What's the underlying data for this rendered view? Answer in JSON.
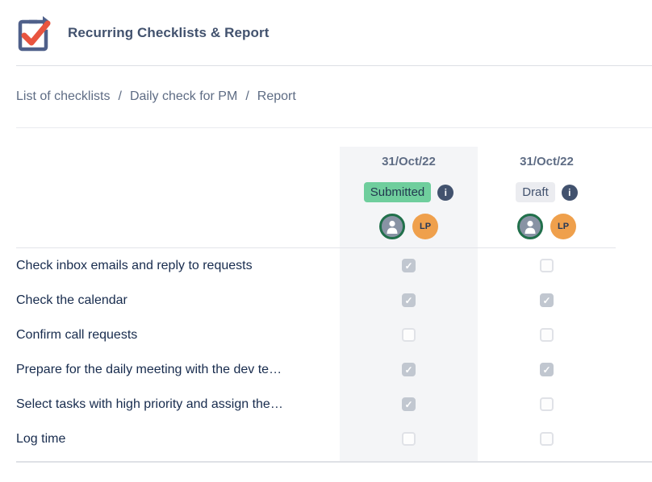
{
  "app": {
    "title": "Recurring Checklists & Report",
    "icon": "recurring-checklist-icon"
  },
  "breadcrumb": {
    "separator": "/",
    "items": [
      {
        "label": "List of checklists",
        "current": false
      },
      {
        "label": "Daily check for PM",
        "current": false
      },
      {
        "label": "Report",
        "current": true
      }
    ]
  },
  "report": {
    "columns": [
      {
        "date": "31/Oct/22",
        "status": "Submitted",
        "status_style": "submitted",
        "has_info_icon": true,
        "highlighted": true,
        "avatars": [
          {
            "kind": "person"
          },
          {
            "kind": "initials",
            "initials": "LP"
          }
        ]
      },
      {
        "date": "31/Oct/22",
        "status": "Draft",
        "status_style": "draft",
        "has_info_icon": true,
        "highlighted": false,
        "avatars": [
          {
            "kind": "person"
          },
          {
            "kind": "initials",
            "initials": "LP"
          }
        ]
      }
    ],
    "rows": [
      {
        "label": "Check inbox emails and reply to requests",
        "checks": [
          true,
          false
        ]
      },
      {
        "label": "Check the calendar",
        "checks": [
          true,
          true
        ]
      },
      {
        "label": "Confirm call requests",
        "checks": [
          false,
          false
        ]
      },
      {
        "label": "Prepare for the daily meeting with the dev te…",
        "checks": [
          true,
          true
        ]
      },
      {
        "label": "Select tasks with high priority and assign the…",
        "checks": [
          true,
          false
        ]
      },
      {
        "label": "Log time",
        "checks": [
          false,
          false
        ]
      }
    ]
  },
  "colors": {
    "submitted_badge_bg": "#6fce9d",
    "draft_badge_bg": "#ebecf0",
    "info_icon_bg": "#42526e",
    "avatar_orange": "#efa04c",
    "avatar_ring_green": "#21704b",
    "avatar_gray": "#8893a4",
    "column_highlight": "#f4f5f7",
    "checkbox_checked": "#c1c7d0",
    "title_color": "#42526e",
    "row_text": "#172b4d",
    "breadcrumb_text": "#5e6c84",
    "icon_check_red": "#e8543f",
    "icon_slate": "#4f608a"
  }
}
